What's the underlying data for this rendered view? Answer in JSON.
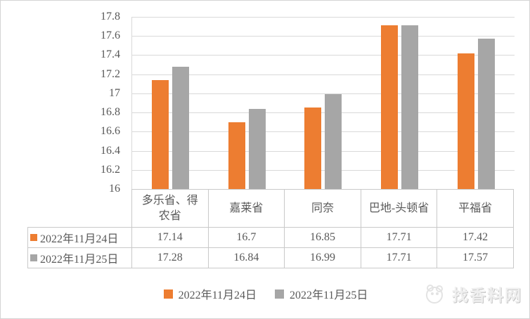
{
  "chart_data": {
    "type": "bar",
    "categories": [
      "多乐省、得农省",
      "嘉莱省",
      "同奈",
      "巴地-头顿省",
      "平福省"
    ],
    "series": [
      {
        "name": "2022年11月24日",
        "color": "#ED7D31",
        "values": [
          17.14,
          16.7,
          16.85,
          17.71,
          17.42
        ]
      },
      {
        "name": "2022年11月25日",
        "color": "#A6A6A6",
        "values": [
          17.28,
          16.84,
          16.99,
          17.71,
          17.57
        ]
      }
    ],
    "title": "",
    "xlabel": "",
    "ylabel": "",
    "ylim": [
      16,
      17.8
    ],
    "ytick_step": 0.2,
    "yticks": [
      "17.8",
      "17.6",
      "17.4",
      "17.2",
      "17",
      "16.8",
      "16.6",
      "16.4",
      "16.2",
      "16"
    ],
    "grid": true,
    "legend_position": "bottom",
    "data_table_shown": true
  },
  "data_table": {
    "headers": [
      "多乐省、得\n农省",
      "嘉莱省",
      "同奈",
      "巴地-头顿省",
      "平福省"
    ],
    "rows": [
      {
        "label": "2022年11月24日",
        "key_color": "#ED7D31",
        "cells": [
          "17.14",
          "16.7",
          "16.85",
          "17.71",
          "17.42"
        ]
      },
      {
        "label": "2022年11月25日",
        "key_color": "#A6A6A6",
        "cells": [
          "17.28",
          "16.84",
          "16.99",
          "17.71",
          "17.57"
        ]
      }
    ]
  },
  "legend": {
    "items": [
      {
        "label": "2022年11月24日",
        "color": "#ED7D31"
      },
      {
        "label": "2022年11月25日",
        "color": "#A6A6A6"
      }
    ]
  },
  "watermark": {
    "text": "找香料网"
  },
  "colors": {
    "gridline": "#d9d9d9",
    "table_border": "#c9c9c9",
    "axis_text": "#595959"
  }
}
